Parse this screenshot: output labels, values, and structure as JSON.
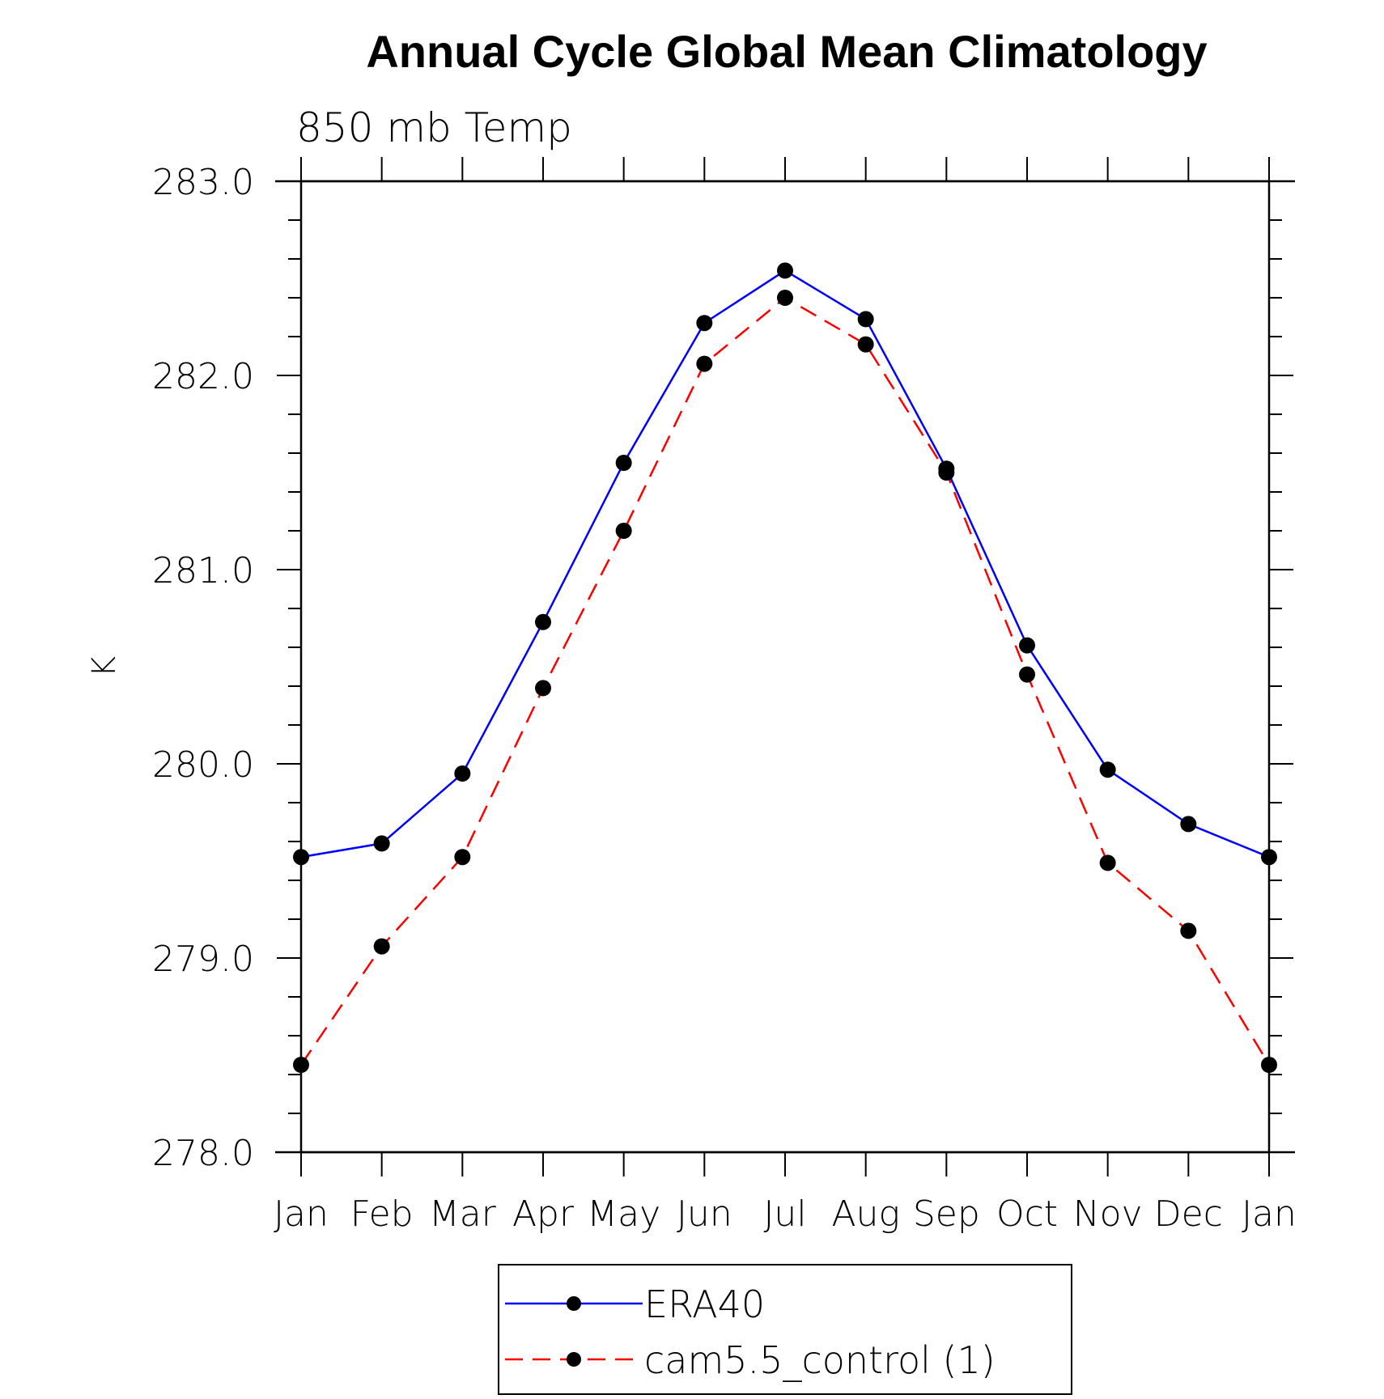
{
  "chart_data": {
    "type": "line",
    "title": "Annual Cycle Global Mean Climatology",
    "subtitle": "850 mb Temp",
    "ylabel": "K",
    "xlabel": "",
    "categories": [
      "Jan",
      "Feb",
      "Mar",
      "Apr",
      "May",
      "Jun",
      "Jul",
      "Aug",
      "Sep",
      "Oct",
      "Nov",
      "Dec",
      "Jan"
    ],
    "ylim": [
      278.0,
      283.0
    ],
    "yticks": [
      "278.0",
      "279.0",
      "280.0",
      "281.0",
      "282.0",
      "283.0"
    ],
    "series": [
      {
        "name": "ERA40",
        "color": "#0000ff",
        "dash": "solid",
        "values": [
          279.52,
          279.59,
          279.95,
          280.73,
          281.55,
          282.27,
          282.54,
          282.29,
          281.52,
          280.61,
          279.97,
          279.69,
          279.52
        ]
      },
      {
        "name": "cam5.5_control (1)",
        "color": "#ff0000",
        "dash": "dashed",
        "values": [
          278.45,
          279.06,
          279.52,
          280.39,
          281.2,
          282.06,
          282.4,
          282.16,
          281.5,
          280.46,
          279.49,
          279.14,
          278.45
        ]
      }
    ],
    "grid": false,
    "legend_position": "bottom-center",
    "marker_color": "#000000"
  }
}
